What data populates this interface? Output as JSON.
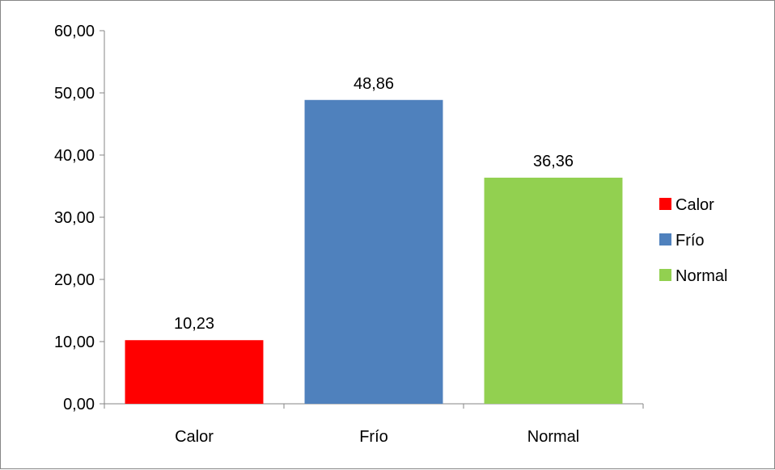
{
  "chart_data": {
    "type": "bar",
    "categories": [
      "Calor",
      "Frío",
      "Normal"
    ],
    "values": [
      10.23,
      48.86,
      36.36
    ],
    "value_labels": [
      "10,23",
      "48,86",
      "36,36"
    ],
    "colors": [
      "#ff0000",
      "#4f81bd",
      "#92d050"
    ],
    "legend": [
      {
        "label": "Calor",
        "color": "#ff0000"
      },
      {
        "label": "Frío",
        "color": "#4f81bd"
      },
      {
        "label": "Normal",
        "color": "#92d050"
      }
    ],
    "legend_position": "right",
    "ylim": [
      0,
      60
    ],
    "y_ticks": [
      0,
      10,
      20,
      30,
      40,
      50,
      60
    ],
    "y_tick_labels": [
      "0,00",
      "10,00",
      "20,00",
      "30,00",
      "40,00",
      "50,00",
      "60,00"
    ],
    "grid": false
  }
}
